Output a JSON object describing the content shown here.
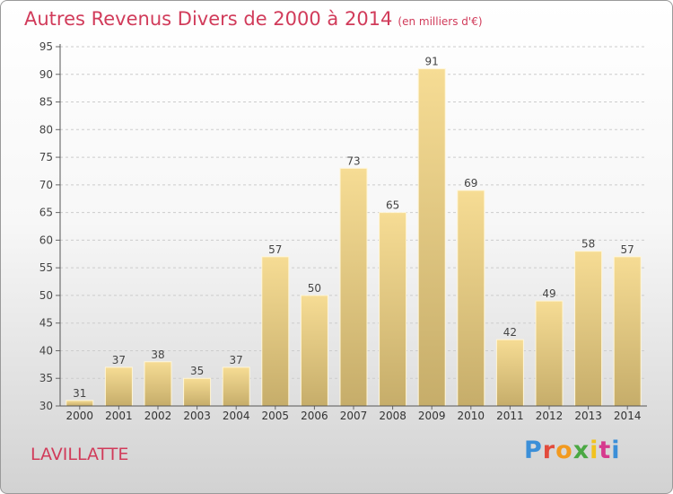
{
  "title": "Autres Revenus Divers de 2000 à 2014",
  "subtitle": "(en milliers d'€)",
  "commune": "LAVILLATTE",
  "logo": {
    "text": "Proxiti",
    "colors": [
      "#3b8fd8",
      "#e24b3c",
      "#f29a1f",
      "#4aa843",
      "#f2c21f",
      "#d63a8e",
      "#3b8fd8"
    ]
  },
  "colors": {
    "accent": "#d13b5a",
    "bar_top": "#f6dc94",
    "bar_bottom": "#c6ad6a",
    "grid": "#cccccc"
  },
  "chart_data": {
    "type": "bar",
    "categories": [
      "2000",
      "2001",
      "2002",
      "2003",
      "2004",
      "2005",
      "2006",
      "2007",
      "2008",
      "2009",
      "2010",
      "2011",
      "2012",
      "2013",
      "2014"
    ],
    "values": [
      31,
      37,
      38,
      35,
      37,
      57,
      50,
      73,
      65,
      91,
      69,
      42,
      49,
      58,
      57
    ],
    "ylim": [
      30,
      95
    ],
    "yticks": [
      30,
      35,
      40,
      45,
      50,
      55,
      60,
      65,
      70,
      75,
      80,
      85,
      90,
      95
    ],
    "grid": true,
    "xlabel": "",
    "ylabel": ""
  }
}
